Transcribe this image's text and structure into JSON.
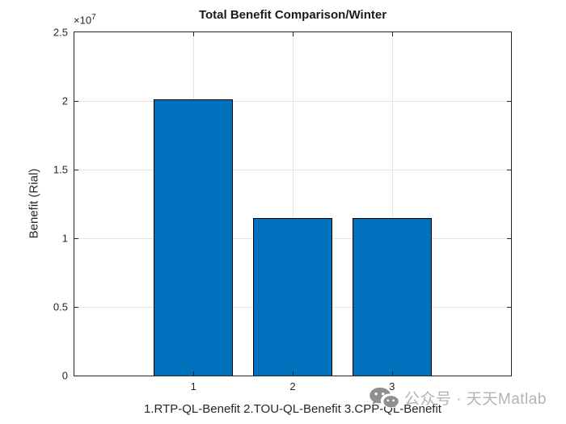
{
  "figure": {
    "watermark": {
      "icon": "wechat-icon",
      "text": "公众号 · 天天Matlab"
    }
  },
  "chart_data": {
    "type": "bar",
    "title": "Total Benefit Comparison/Winter",
    "ylabel": "Benefit (Rial)",
    "xlabel": "1.RTP-QL-Benefit 2.TOU-QL-Benefit 3.CPP-QL-Benefit",
    "scale_label": {
      "base": "×10",
      "exponent": "7"
    },
    "categories": [
      "1",
      "2",
      "3"
    ],
    "x_positions": [
      1,
      2,
      3
    ],
    "values": [
      20100000,
      11500000,
      11500000
    ],
    "series_name": "Total Benefit",
    "xlim": [
      -0.2,
      4.2
    ],
    "ylim": [
      0,
      25000000
    ],
    "yticks": [
      0,
      5000000,
      10000000,
      15000000,
      20000000,
      25000000
    ],
    "ytick_labels": [
      "0",
      "0.5",
      "1",
      "1.5",
      "2",
      "2.5"
    ],
    "bar_width": 0.8,
    "grid": true,
    "legend": null,
    "colors": {
      "bar_fill": "#0072BD",
      "bar_edge": "#000000",
      "grid_line": "#e4e4e4",
      "axis_box": "#262626",
      "title_text": "#1a1a1a",
      "watermark_text": "#b3b3b3",
      "watermark_icon": "#8f8f8f"
    }
  }
}
